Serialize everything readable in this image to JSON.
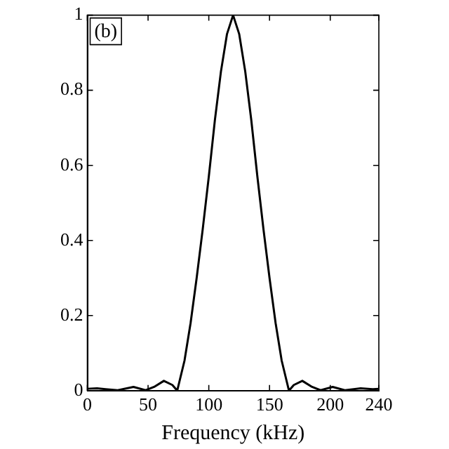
{
  "chart_data": {
    "type": "line",
    "xlabel": "Frequency (kHz)",
    "annotations": [
      "(b)"
    ],
    "x": [
      0,
      8,
      15,
      25,
      38,
      48,
      55,
      63,
      70,
      74,
      80,
      85,
      90,
      95,
      100,
      105,
      110,
      115,
      120,
      125,
      130,
      135,
      140,
      145,
      150,
      155,
      160,
      166,
      170,
      177,
      185,
      192,
      202,
      212,
      225,
      235,
      240
    ],
    "series": [
      {
        "color": "#000000",
        "values": [
          0.005,
          0.006,
          0.004,
          0.001,
          0.01,
          0.001,
          0.01,
          0.026,
          0.015,
          0,
          0.08,
          0.18,
          0.3,
          0.43,
          0.57,
          0.72,
          0.85,
          0.95,
          1,
          0.95,
          0.85,
          0.72,
          0.57,
          0.43,
          0.3,
          0.18,
          0.08,
          0,
          0.015,
          0.026,
          0.01,
          0.001,
          0.01,
          0.001,
          0.006,
          0.004,
          0.005
        ]
      }
    ],
    "xlim": [
      0,
      240
    ],
    "xticks": [
      0,
      50,
      100,
      150,
      200,
      240
    ],
    "ylim": [
      0,
      1
    ],
    "yticks": [
      0,
      0.2,
      0.4,
      0.6,
      0.8,
      1
    ],
    "grid": false,
    "legend": false,
    "marker": "none",
    "line_style": "solid"
  }
}
